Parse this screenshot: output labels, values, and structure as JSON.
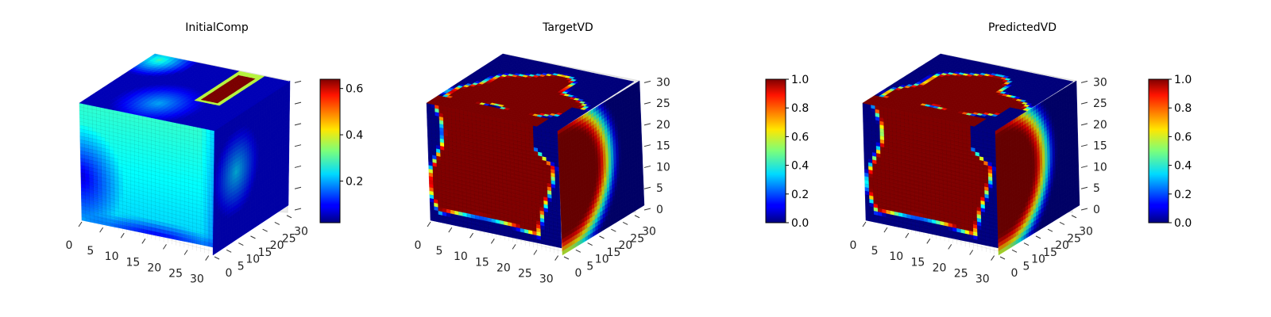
{
  "figure": {
    "background": "#ffffff",
    "colormap": "jet"
  },
  "chart_data": [
    {
      "type": "heatmap",
      "title": "InitialComp",
      "dims": [
        32,
        32,
        32
      ],
      "x_ticks": [
        "0",
        "5",
        "10",
        "15",
        "20",
        "25",
        "30"
      ],
      "y_ticks": [
        "0",
        "5",
        "10",
        "15",
        "20",
        "25",
        "30"
      ],
      "z_ticks": [
        "",
        "",
        "",
        "",
        "",
        "",
        ""
      ],
      "colorbar": {
        "ticks": [
          "0.2",
          "0.4",
          "0.6"
        ],
        "range": [
          0.02,
          0.64
        ]
      },
      "field": "initial_composition"
    },
    {
      "type": "heatmap",
      "title": "TargetVD",
      "dims": [
        32,
        32,
        32
      ],
      "x_ticks": [
        "0",
        "5",
        "10",
        "15",
        "20",
        "25",
        "30"
      ],
      "y_ticks": [
        "0",
        "5",
        "10",
        "15",
        "20",
        "25",
        "30"
      ],
      "z_ticks": [
        "0",
        "5",
        "10",
        "15",
        "20",
        "25",
        "30"
      ],
      "colorbar": {
        "ticks": [
          "0.0",
          "0.2",
          "0.4",
          "0.6",
          "0.8",
          "1.0"
        ],
        "range": [
          0,
          1
        ]
      },
      "field": "target_volume"
    },
    {
      "type": "heatmap",
      "title": "PredictedVD",
      "dims": [
        32,
        32,
        32
      ],
      "x_ticks": [
        "0",
        "5",
        "10",
        "15",
        "20",
        "25",
        "30"
      ],
      "y_ticks": [
        "0",
        "5",
        "10",
        "15",
        "20",
        "25",
        "30"
      ],
      "z_ticks": [
        "0",
        "5",
        "10",
        "15",
        "20",
        "25",
        "30"
      ],
      "colorbar": {
        "ticks": [
          "0.0",
          "0.2",
          "0.4",
          "0.6",
          "0.8",
          "1.0"
        ],
        "range": [
          0,
          1
        ]
      },
      "field": "predicted_volume"
    }
  ]
}
